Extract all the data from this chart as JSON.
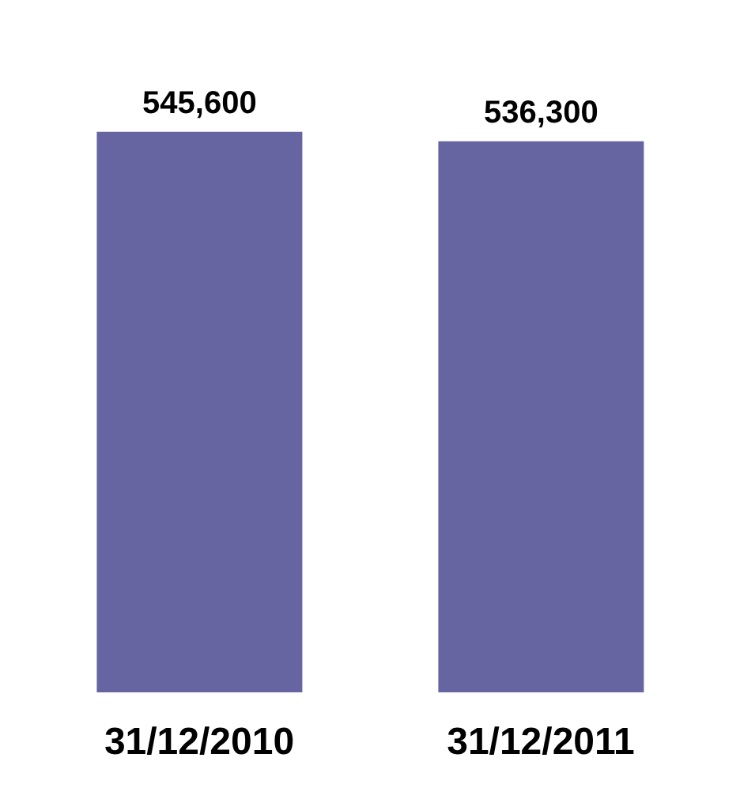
{
  "chart_data": {
    "type": "bar",
    "categories": [
      "31/12/2010",
      "31/12/2011"
    ],
    "values": [
      545600,
      536300
    ],
    "color": "#6765a1",
    "value_labels": [
      "545,600",
      "536,300"
    ]
  }
}
